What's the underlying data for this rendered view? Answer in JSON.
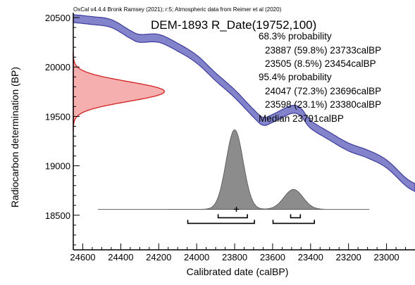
{
  "credit": "OxCal v4.4.4 Bronk Ramsey (2021); r:5; Atmospheric data from Reimer et al (2020)",
  "chart_data": {
    "type": "area",
    "title": "DEM-1893 R_Date(19752,100)",
    "xlabel": "Calibrated date (calBP)",
    "ylabel": "Radiocarbon determination (BP)",
    "xlim": [
      24650,
      22850
    ],
    "ylim": [
      18150,
      20550
    ],
    "x_ticks": [
      24600,
      24400,
      24200,
      24000,
      23800,
      23600,
      23400,
      23200,
      23000
    ],
    "y_ticks": [
      18500,
      19000,
      19500,
      20000,
      20500
    ],
    "annotations": [
      "68.3% probability",
      "23887 (59.8%) 23733calBP",
      "23505 (8.5%) 23454calBP",
      "95.4% probability",
      "24047 (72.3%) 23696calBP",
      "23598 (23.1%) 23380calBP",
      "Median 23791calBP"
    ],
    "radiocarbon_date": {
      "mean": 19752,
      "sd": 100
    },
    "calibration_curve": {
      "name": "IntCal20 atmospheric",
      "color": "#7c7cc8",
      "points": [
        {
          "x": 24650,
          "y": 20490
        },
        {
          "x": 24550,
          "y": 20470
        },
        {
          "x": 24450,
          "y": 20440
        },
        {
          "x": 24350,
          "y": 20330
        },
        {
          "x": 24300,
          "y": 20290
        },
        {
          "x": 24200,
          "y": 20290
        },
        {
          "x": 24100,
          "y": 20200
        },
        {
          "x": 24000,
          "y": 20080
        },
        {
          "x": 23900,
          "y": 19900
        },
        {
          "x": 23800,
          "y": 19730
        },
        {
          "x": 23700,
          "y": 19530
        },
        {
          "x": 23650,
          "y": 19450
        },
        {
          "x": 23600,
          "y": 19480
        },
        {
          "x": 23500,
          "y": 19570
        },
        {
          "x": 23450,
          "y": 19540
        },
        {
          "x": 23400,
          "y": 19420
        },
        {
          "x": 23300,
          "y": 19300
        },
        {
          "x": 23200,
          "y": 19190
        },
        {
          "x": 23100,
          "y": 19120
        },
        {
          "x": 23000,
          "y": 19020
        },
        {
          "x": 22900,
          "y": 18840
        },
        {
          "x": 22850,
          "y": 18780
        }
      ],
      "band_halfwidth_bp": 40
    },
    "calibrated_distribution": {
      "color": "#8c8c8c",
      "baseline_y": 18560,
      "peaks": [
        {
          "x": 23800,
          "sigma": 45,
          "height": 1
        },
        {
          "x": 23490,
          "sigma": 50,
          "height": 0.25
        }
      ]
    },
    "ranges_68": [
      [
        23887,
        23733
      ],
      [
        23505,
        23454
      ]
    ],
    "ranges_95": [
      [
        24047,
        23696
      ],
      [
        23598,
        23380
      ]
    ],
    "median": 23791,
    "radiocarbon_curve_color": "#ee7a7a"
  }
}
